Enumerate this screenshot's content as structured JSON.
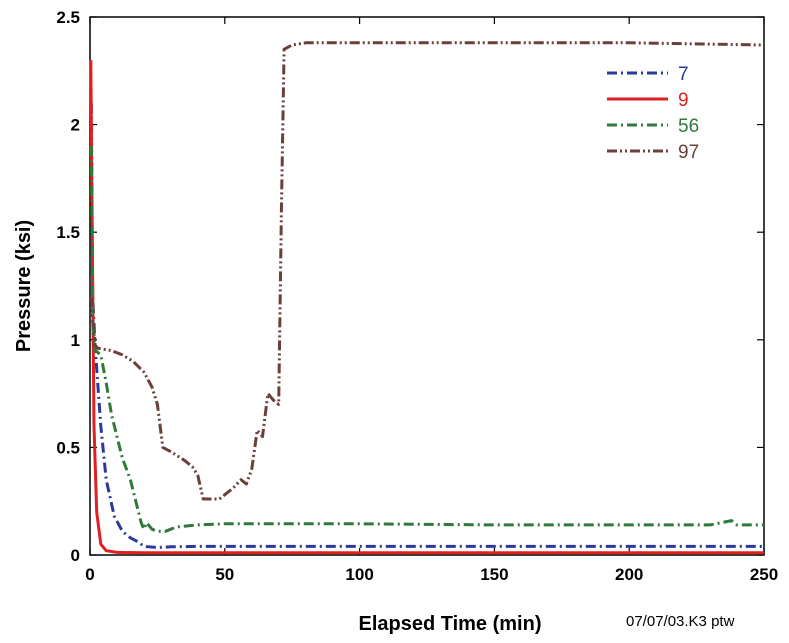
{
  "chart_data": {
    "type": "line",
    "title": "",
    "xlabel": "Elapsed Time (min)",
    "ylabel": "Pressure (ksi)",
    "xlim": [
      0,
      250
    ],
    "ylim": [
      0,
      2.5
    ],
    "x_ticks": [
      "0",
      "50",
      "100",
      "150",
      "200",
      "250"
    ],
    "y_ticks": [
      "0",
      "0.5",
      "1",
      "1.5",
      "2",
      "2.5"
    ],
    "grid": false,
    "legend_position": "top-right",
    "footnote": "07/07/03.K3 ptw",
    "series": [
      {
        "name": "7",
        "color": "#2b3a9a",
        "dash": "dash-dot",
        "points": [
          [
            0.5,
            2.1
          ],
          [
            1,
            1.2
          ],
          [
            2,
            0.95
          ],
          [
            4,
            0.6
          ],
          [
            6,
            0.35
          ],
          [
            9,
            0.18
          ],
          [
            12,
            0.11
          ],
          [
            15,
            0.08
          ],
          [
            18,
            0.06
          ],
          [
            20,
            0.04
          ],
          [
            25,
            0.035
          ],
          [
            30,
            0.038
          ],
          [
            40,
            0.04
          ],
          [
            60,
            0.04
          ],
          [
            100,
            0.04
          ],
          [
            150,
            0.04
          ],
          [
            200,
            0.04
          ],
          [
            250,
            0.04
          ]
        ]
      },
      {
        "name": "9",
        "color": "#e02020",
        "dash": "solid",
        "points": [
          [
            0.3,
            2.3
          ],
          [
            0.8,
            1.5
          ],
          [
            1.5,
            0.6
          ],
          [
            2.5,
            0.2
          ],
          [
            4,
            0.05
          ],
          [
            6,
            0.02
          ],
          [
            10,
            0.012
          ],
          [
            20,
            0.01
          ],
          [
            50,
            0.01
          ],
          [
            100,
            0.01
          ],
          [
            150,
            0.01
          ],
          [
            200,
            0.01
          ],
          [
            250,
            0.01
          ]
        ]
      },
      {
        "name": "56",
        "color": "#2f7a3a",
        "dash": "dash-dot",
        "points": [
          [
            0.5,
            1.9
          ],
          [
            1,
            1.1
          ],
          [
            2,
            0.95
          ],
          [
            4,
            0.93
          ],
          [
            6,
            0.8
          ],
          [
            8,
            0.65
          ],
          [
            10,
            0.55
          ],
          [
            12,
            0.45
          ],
          [
            15,
            0.35
          ],
          [
            17,
            0.25
          ],
          [
            19,
            0.15
          ],
          [
            20,
            0.12
          ],
          [
            21,
            0.15
          ],
          [
            23,
            0.12
          ],
          [
            25,
            0.11
          ],
          [
            28,
            0.11
          ],
          [
            32,
            0.13
          ],
          [
            40,
            0.14
          ],
          [
            50,
            0.145
          ],
          [
            70,
            0.145
          ],
          [
            100,
            0.145
          ],
          [
            150,
            0.14
          ],
          [
            200,
            0.14
          ],
          [
            230,
            0.14
          ],
          [
            238,
            0.16
          ],
          [
            240,
            0.14
          ],
          [
            250,
            0.14
          ]
        ]
      },
      {
        "name": "97",
        "color": "#6b3f3a",
        "dash": "dash-dot-dot",
        "points": [
          [
            0.5,
            1.2
          ],
          [
            1.5,
            0.98
          ],
          [
            3,
            0.96
          ],
          [
            8,
            0.95
          ],
          [
            12,
            0.93
          ],
          [
            16,
            0.9
          ],
          [
            20,
            0.85
          ],
          [
            23,
            0.78
          ],
          [
            25,
            0.7
          ],
          [
            27,
            0.5
          ],
          [
            30,
            0.48
          ],
          [
            35,
            0.44
          ],
          [
            38,
            0.41
          ],
          [
            40,
            0.37
          ],
          [
            42,
            0.26
          ],
          [
            48,
            0.26
          ],
          [
            50,
            0.28
          ],
          [
            53,
            0.31
          ],
          [
            56,
            0.35
          ],
          [
            58,
            0.33
          ],
          [
            60,
            0.4
          ],
          [
            62,
            0.58
          ],
          [
            64,
            0.55
          ],
          [
            66,
            0.75
          ],
          [
            68,
            0.72
          ],
          [
            70,
            0.7
          ],
          [
            71,
            1.6
          ],
          [
            72,
            2.35
          ],
          [
            75,
            2.37
          ],
          [
            80,
            2.38
          ],
          [
            100,
            2.38
          ],
          [
            150,
            2.38
          ],
          [
            200,
            2.38
          ],
          [
            250,
            2.37
          ]
        ]
      }
    ]
  }
}
